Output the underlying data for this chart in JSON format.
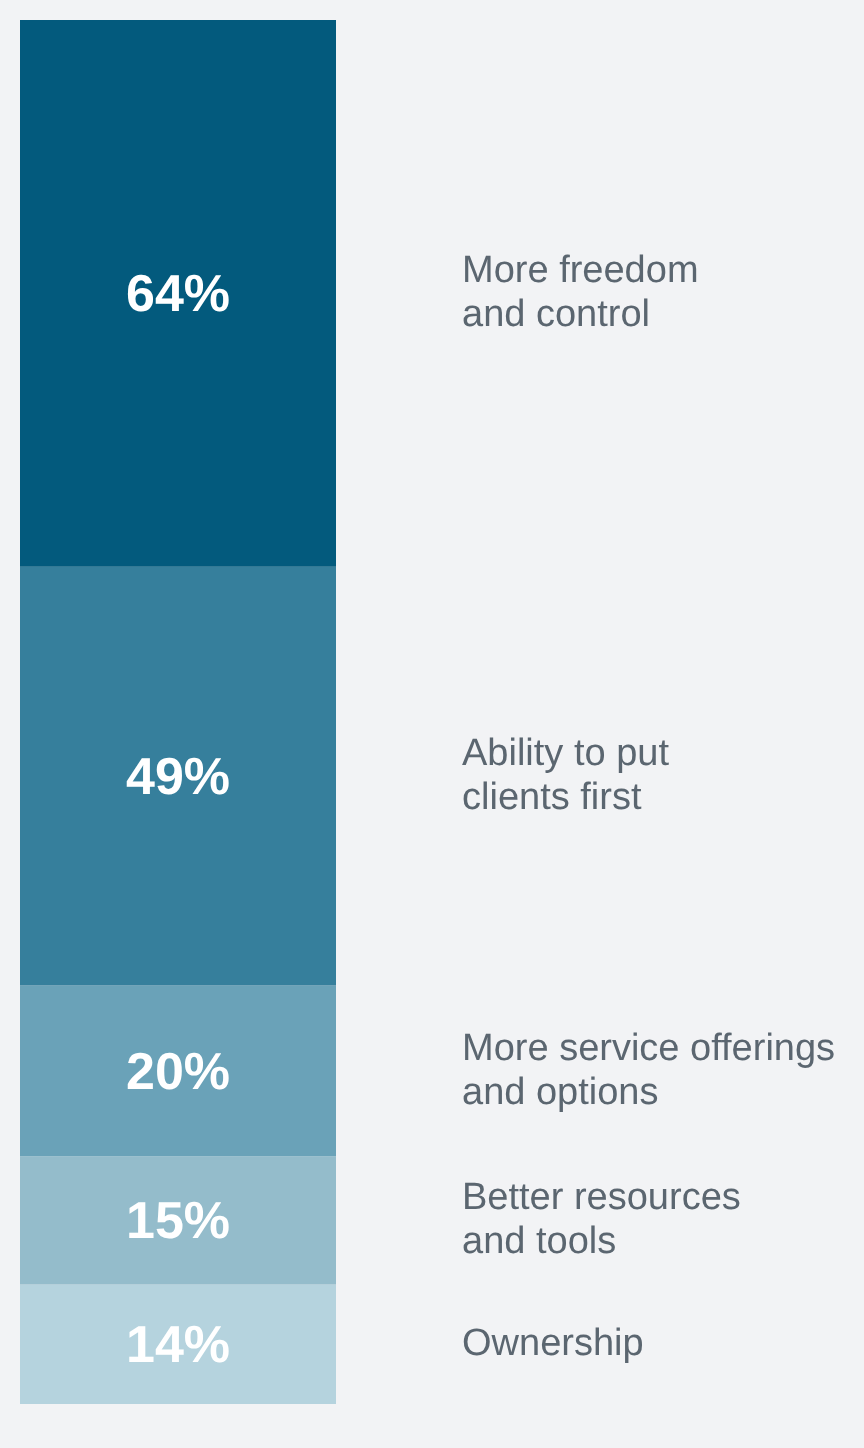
{
  "chart_data": {
    "type": "bar",
    "stacked": true,
    "categories": [
      null
    ],
    "tick_labels": false,
    "series": [
      {
        "name": "Ownership",
        "color": "#b5d3de",
        "values": [
          14
        ],
        "value_labels": [
          "14%"
        ]
      },
      {
        "name": "Better resources\nand tools",
        "color": "#94bccb",
        "values": [
          15
        ],
        "value_labels": [
          "15%"
        ]
      },
      {
        "name": "More service offerings\nand options",
        "color": "#6aa2b8",
        "values": [
          20
        ],
        "value_labels": [
          "20%"
        ]
      },
      {
        "name": "Ability to put\nclients first",
        "color": "#367f9c",
        "values": [
          49
        ],
        "value_labels": [
          "49%"
        ]
      },
      {
        "name": "More freedom\nand control",
        "color": "#035a7d",
        "values": [
          64
        ],
        "value_labels": [
          "64%"
        ]
      }
    ]
  }
}
